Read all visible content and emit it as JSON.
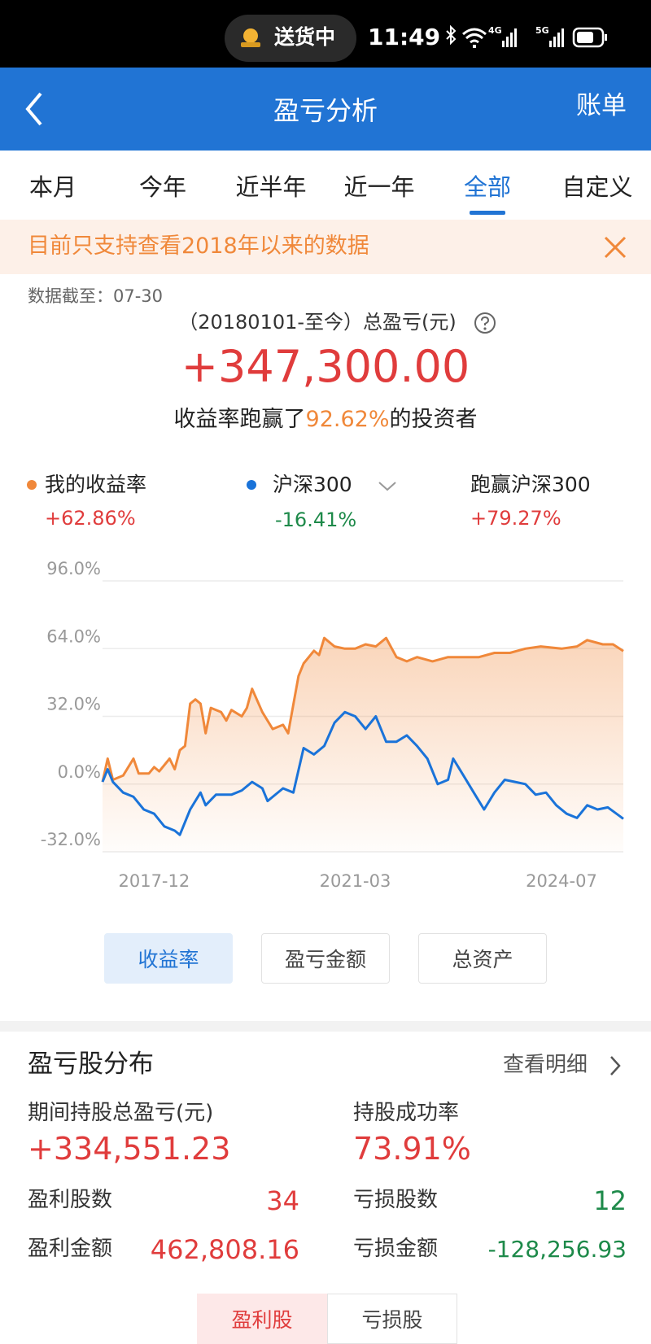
{
  "status": {
    "app": "送货中",
    "time": "11:49",
    "net1": "4G",
    "net2": "5G"
  },
  "nav": {
    "title": "盈亏分析",
    "right": "账单"
  },
  "tabs": {
    "items": [
      "本月",
      "今年",
      "近半年",
      "近一年",
      "全部",
      "自定义"
    ],
    "active": 4
  },
  "notice": "目前只支持查看2018年以来的数据",
  "summary": {
    "date_label": "数据截至：07-30",
    "period_label": "（20180101-至今）总盈亏(元)",
    "total": "+347,300.00",
    "rank_prefix": "收益率跑赢了",
    "rank_value": "92.62%",
    "rank_suffix": "的投资者"
  },
  "chart_data": {
    "type": "line",
    "xlim": [
      "2017-02",
      "2025-07"
    ],
    "xticks": [
      "2017-12",
      "2021-03",
      "2024-07"
    ],
    "ylim": [
      -32,
      96
    ],
    "yticks": [
      {
        "value": 96,
        "label": "96.0%"
      },
      {
        "value": 64,
        "label": "64.0%"
      },
      {
        "value": 32,
        "label": "32.0%"
      },
      {
        "value": 0,
        "label": "0.0%"
      },
      {
        "value": -32,
        "label": "-32.0%"
      }
    ],
    "grid": true,
    "series": [
      {
        "name": "我的收益率",
        "summary": "+62.86%",
        "color": "#f0883a",
        "area": true,
        "x": [
          "2017-02",
          "2017-03",
          "2017-04",
          "2017-06",
          "2017-08",
          "2017-09",
          "2017-11",
          "2017-12",
          "2018-01",
          "2018-03",
          "2018-04",
          "2018-05",
          "2018-06",
          "2018-07",
          "2018-08",
          "2018-09",
          "2018-10",
          "2018-11",
          "2019-01",
          "2019-02",
          "2019-03",
          "2019-05",
          "2019-06",
          "2019-07",
          "2019-09",
          "2019-11",
          "2020-01",
          "2020-02",
          "2020-04",
          "2020-05",
          "2020-07",
          "2020-08",
          "2020-09",
          "2020-11",
          "2021-01",
          "2021-03",
          "2021-05",
          "2021-07",
          "2021-09",
          "2021-11",
          "2022-01",
          "2022-03",
          "2022-06",
          "2022-09",
          "2022-12",
          "2023-03",
          "2023-06",
          "2023-09",
          "2023-12",
          "2024-03",
          "2024-07",
          "2024-10",
          "2024-12",
          "2025-03",
          "2025-05",
          "2025-07"
        ],
        "values": [
          1,
          12,
          2,
          4,
          12,
          5,
          5,
          8,
          6,
          12,
          7,
          16,
          18,
          38,
          40,
          38,
          24,
          36,
          34,
          30,
          35,
          32,
          36,
          45,
          34,
          26,
          28,
          24,
          51,
          57,
          63,
          61,
          69,
          65,
          64,
          64,
          66,
          65,
          69,
          60,
          58,
          60,
          58,
          60,
          60,
          60,
          62,
          62,
          64,
          65,
          64,
          65,
          68,
          66,
          66,
          62.86
        ]
      },
      {
        "name": "沪深300",
        "summary": "-16.41%",
        "color": "#1a73d9",
        "area": false,
        "x": [
          "2017-02",
          "2017-03",
          "2017-04",
          "2017-06",
          "2017-08",
          "2017-10",
          "2017-12",
          "2018-02",
          "2018-04",
          "2018-05",
          "2018-07",
          "2018-09",
          "2018-10",
          "2018-12",
          "2019-03",
          "2019-05",
          "2019-07",
          "2019-09",
          "2019-10",
          "2020-01",
          "2020-03",
          "2020-05",
          "2020-07",
          "2020-09",
          "2020-11",
          "2021-01",
          "2021-03",
          "2021-05",
          "2021-07",
          "2021-09",
          "2021-11",
          "2022-01",
          "2022-03",
          "2022-05",
          "2022-07",
          "2022-09",
          "2022-10",
          "2022-12",
          "2023-02",
          "2023-04",
          "2023-06",
          "2023-08",
          "2023-10",
          "2023-12",
          "2024-02",
          "2024-04",
          "2024-06",
          "2024-08",
          "2024-10",
          "2024-12",
          "2025-02",
          "2025-04",
          "2025-07"
        ],
        "values": [
          1,
          7,
          1,
          -4,
          -6,
          -12,
          -14,
          -20,
          -22,
          -24,
          -12,
          -4,
          -10,
          -5,
          -5,
          -3,
          1,
          -2,
          -8,
          -2,
          -4,
          17,
          14,
          18,
          29,
          34,
          32,
          26,
          32,
          20,
          20,
          23,
          18,
          12,
          0,
          2,
          12,
          4,
          -4,
          -12,
          -4,
          2,
          1,
          0,
          -5,
          -4,
          -10,
          -14,
          -16,
          -10,
          -12,
          -11,
          -16.41
        ]
      }
    ],
    "excess": {
      "label": "跑赢沪深300",
      "value": "+79.27%"
    }
  },
  "chart_buttons": {
    "items": [
      "收益率",
      "盈亏金额",
      "总资产"
    ],
    "active": 0
  },
  "distribution": {
    "title": "盈亏股分布",
    "link": "查看明细",
    "period_label": "期间持股总盈亏(元)",
    "period_value": "+334,551.23",
    "success_label": "持股成功率",
    "success_value": "73.91%",
    "win_count_label": "盈利股数",
    "win_count": 34,
    "loss_count_label": "亏损股数",
    "loss_count": 12,
    "win_amount_label": "盈利金额",
    "win_amount": "462,808.16",
    "loss_amount_label": "亏损金额",
    "loss_amount": "-128,256.93"
  },
  "bottom_tabs": {
    "items": [
      "盈利股",
      "亏损股"
    ],
    "active": 0
  }
}
